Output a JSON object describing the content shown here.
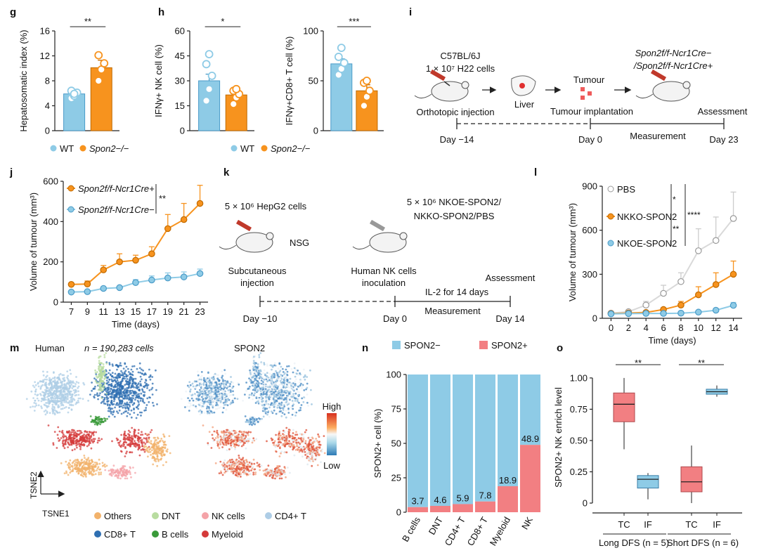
{
  "colors": {
    "blue": "#8ecbe6",
    "blue_dark": "#4a9bc8",
    "orange": "#f7931e",
    "pink": "#f27f82",
    "gray": "#bdbdbd",
    "axis": "#222222"
  },
  "panels": {
    "g": {
      "label": "g",
      "ylabel": "Hepatosomatic index (%)",
      "sig": "**",
      "legend": [
        {
          "text": "WT",
          "color": "blue"
        },
        {
          "text": "Spon2−/−",
          "color": "orange"
        }
      ]
    },
    "h": {
      "label": "h",
      "ylabel1": "IFNγ+ NK cell (%)",
      "sig1": "*",
      "ylabel2": "IFNγ+CD8+ T cell (%)",
      "sig2": "***",
      "legend": [
        {
          "text": "WT",
          "color": "blue"
        },
        {
          "text": "Spon2−/−",
          "color": "orange"
        }
      ]
    },
    "i": {
      "label": "i",
      "strain": "C57BL/6J",
      "cells": "1 × 10⁷ H22 cells",
      "ko_line1": "Spon2f/f-Ncr1Cre−",
      "ko_line2": "/Spon2f/f-Ncr1Cre+",
      "tumour": "Tumour",
      "liver": "Liver",
      "step1": "Orthotopic injection",
      "step2": "Tumour implantation",
      "step3": "Assessment",
      "days": [
        "Day −14",
        "Day 0",
        "Day 23"
      ],
      "measurement": "Measurement"
    },
    "j": {
      "label": "j",
      "ylabel": "Volume of tumour (mm³)",
      "xlabel": "Time (days)",
      "sig": "**",
      "legend": [
        {
          "text": "Spon2f/f-Ncr1Cre+",
          "color": "orange"
        },
        {
          "text": "Spon2f/f-Ncr1Cre−",
          "color": "blue"
        }
      ]
    },
    "k": {
      "label": "k",
      "cells": "5 × 10⁶ HepG2 cells",
      "mouse": "NSG",
      "nk_line1": "5 × 10⁶ NKOE-SPON2/",
      "nk_line2": "NKKO-SPON2/PBS",
      "step1a": "Subcutaneous",
      "step1b": "injection",
      "step2a": "Human NK cells",
      "step2b": "inoculation",
      "step3": "Assessment",
      "il2": "IL-2 for 14 days",
      "measurement": "Measurement",
      "days": [
        "Day −10",
        "Day 0",
        "Day 14"
      ]
    },
    "l": {
      "label": "l",
      "ylabel": "Volume of tumour (mm³)",
      "xlabel": "Time (days)",
      "sig": [
        "*",
        "**",
        "****"
      ],
      "legend": [
        {
          "text": "PBS",
          "color": "gray"
        },
        {
          "text": "NKKO-SPON2",
          "color": "orange"
        },
        {
          "text": "NKOE-SPON2",
          "color": "blue"
        }
      ]
    },
    "m": {
      "label": "m",
      "title1": "Human",
      "count": "n = 190,283 cells",
      "title2": "SPON2",
      "high": "High",
      "low": "Low",
      "tsne1": "TSNE1",
      "tsne2": "TSNE2",
      "legend": [
        {
          "text": "Others",
          "color": "#f2b26b"
        },
        {
          "text": "DNT",
          "color": "#b8dca0"
        },
        {
          "text": "NK cells",
          "color": "#f4a3a8"
        },
        {
          "text": "CD4+ T",
          "color": "#aecde6"
        },
        {
          "text": "CD8+ T",
          "color": "#2f6fb2"
        },
        {
          "text": "B cells",
          "color": "#3a9a3a"
        },
        {
          "text": "Myeloid",
          "color": "#d43a3a"
        }
      ]
    },
    "n": {
      "label": "n",
      "ylabel": "SPON2+ cell (%)",
      "legend": [
        {
          "text": "SPON2−",
          "color": "blue"
        },
        {
          "text": "SPON2+",
          "color": "pink"
        }
      ]
    },
    "o": {
      "label": "o",
      "ylabel": "SPON2+ NK enrich level",
      "sig": [
        "**",
        "**"
      ],
      "groups": [
        "Long DFS (n = 5)",
        "Short DFS (n = 6)"
      ],
      "xcats": [
        "TC",
        "IF",
        "TC",
        "IF"
      ]
    }
  },
  "chart_data": [
    {
      "id": "g",
      "type": "bar",
      "title": "",
      "categories": [
        "WT",
        "Spon2−/−"
      ],
      "values": [
        5.9,
        10.1
      ],
      "errors": [
        0.4,
        1.2
      ],
      "points": [
        [
          5.2,
          5.6,
          6.1,
          6.4,
          5.9
        ],
        [
          8.0,
          9.8,
          10.8,
          12.1
        ]
      ],
      "ylim": [
        0,
        16
      ],
      "yticks": [
        0,
        4,
        8,
        12,
        16
      ],
      "ylabel": "Hepatosomatic index (%)"
    },
    {
      "id": "h1",
      "type": "bar",
      "categories": [
        "WT",
        "Spon2−/−"
      ],
      "values": [
        30,
        21.5
      ],
      "errors": [
        4,
        1.8
      ],
      "points": [
        [
          18,
          25,
          33,
          40,
          46
        ],
        [
          16,
          20,
          22,
          24,
          25
        ]
      ],
      "ylim": [
        0,
        60
      ],
      "yticks": [
        0,
        15,
        30,
        45,
        60
      ],
      "ylabel": "IFNγ+ NK cell (%)"
    },
    {
      "id": "h2",
      "type": "bar",
      "categories": [
        "WT",
        "Spon2−/−"
      ],
      "values": [
        67,
        40
      ],
      "errors": [
        5,
        6
      ],
      "points": [
        [
          56,
          62,
          68,
          74,
          83
        ],
        [
          25,
          34,
          40,
          48,
          50
        ]
      ],
      "ylim": [
        0,
        100
      ],
      "yticks": [
        0,
        50,
        100
      ],
      "ylabel": "IFNγ+CD8+ T cell (%)"
    },
    {
      "id": "j",
      "type": "line",
      "x": [
        7,
        9,
        11,
        13,
        15,
        17,
        19,
        21,
        23
      ],
      "series": [
        {
          "name": "Spon2f/f-Ncr1Cre+",
          "color": "orange",
          "values": [
            88,
            90,
            160,
            200,
            208,
            240,
            365,
            410,
            490
          ],
          "errors": [
            0,
            15,
            22,
            40,
            25,
            35,
            70,
            80,
            90
          ]
        },
        {
          "name": "Spon2f/f-Ncr1Cre−",
          "color": "blue",
          "values": [
            50,
            52,
            68,
            72,
            97,
            110,
            120,
            125,
            142
          ],
          "errors": [
            0,
            0,
            0,
            0,
            15,
            20,
            25,
            25,
            22
          ]
        }
      ],
      "xlim": [
        6,
        24
      ],
      "ylim": [
        0,
        600
      ],
      "yticks": [
        0,
        200,
        400,
        600
      ],
      "xlabel": "Time (days)",
      "ylabel": "Volume of tumour (mm³)"
    },
    {
      "id": "l",
      "type": "line",
      "x": [
        0,
        2,
        4,
        6,
        8,
        10,
        12,
        14
      ],
      "series": [
        {
          "name": "PBS",
          "color": "gray",
          "values": [
            35,
            45,
            90,
            170,
            250,
            460,
            530,
            680
          ],
          "errors": [
            5,
            10,
            25,
            55,
            60,
            150,
            160,
            180
          ]
        },
        {
          "name": "NKKO-SPON2",
          "color": "orange",
          "values": [
            32,
            36,
            40,
            60,
            90,
            160,
            230,
            300
          ],
          "errors": [
            0,
            0,
            0,
            10,
            25,
            55,
            80,
            90
          ]
        },
        {
          "name": "NKOE-SPON2",
          "color": "blue",
          "values": [
            30,
            32,
            33,
            33,
            35,
            42,
            55,
            88
          ],
          "errors": [
            0,
            0,
            0,
            0,
            0,
            5,
            10,
            20
          ]
        }
      ],
      "xlim": [
        -1,
        15
      ],
      "ylim": [
        0,
        900
      ],
      "yticks": [
        0,
        300,
        600,
        900
      ],
      "xlabel": "Time (days)",
      "ylabel": "Volume of tumour (mm³)"
    },
    {
      "id": "n",
      "type": "bar",
      "stacked": true,
      "categories": [
        "B cells",
        "DNT",
        "CD4+ T",
        "CD8+ T",
        "Myeloid",
        "NK"
      ],
      "series": [
        {
          "name": "SPON2+",
          "values": [
            3.7,
            4.6,
            5.9,
            7.8,
            18.9,
            48.9
          ]
        },
        {
          "name": "SPON2−",
          "values": [
            96.3,
            95.4,
            94.1,
            92.2,
            81.1,
            51.1
          ]
        }
      ],
      "labels": [
        "3.7",
        "4.6",
        "5.9",
        "7.8",
        "18.9",
        "48.9"
      ],
      "ylim": [
        0,
        100
      ],
      "yticks": [
        0,
        25,
        50,
        75,
        100
      ],
      "ylabel": "SPON2+ cell (%)"
    },
    {
      "id": "o",
      "type": "box",
      "categories": [
        "Long DFS TC",
        "Long DFS IF",
        "Short DFS TC",
        "Short DFS IF"
      ],
      "boxes": [
        {
          "min": 0.43,
          "q1": 0.65,
          "median": 0.79,
          "q3": 0.88,
          "max": 1.0,
          "color": "pink"
        },
        {
          "min": 0.03,
          "q1": 0.12,
          "median": 0.19,
          "q3": 0.22,
          "max": 0.24,
          "color": "blue"
        },
        {
          "min": 0.0,
          "q1": 0.09,
          "median": 0.17,
          "q3": 0.29,
          "max": 0.46,
          "color": "pink"
        },
        {
          "min": 0.85,
          "q1": 0.87,
          "median": 0.89,
          "q3": 0.91,
          "max": 0.94,
          "color": "blue"
        }
      ],
      "ylim": [
        0,
        1.05
      ],
      "yticks": [
        0,
        0.25,
        0.5,
        0.75,
        1.0
      ],
      "yticklabels": [
        "0",
        "0.25",
        "0.50",
        "0.75",
        "1.00"
      ],
      "ylabel": "SPON2+ NK enrich level"
    }
  ]
}
